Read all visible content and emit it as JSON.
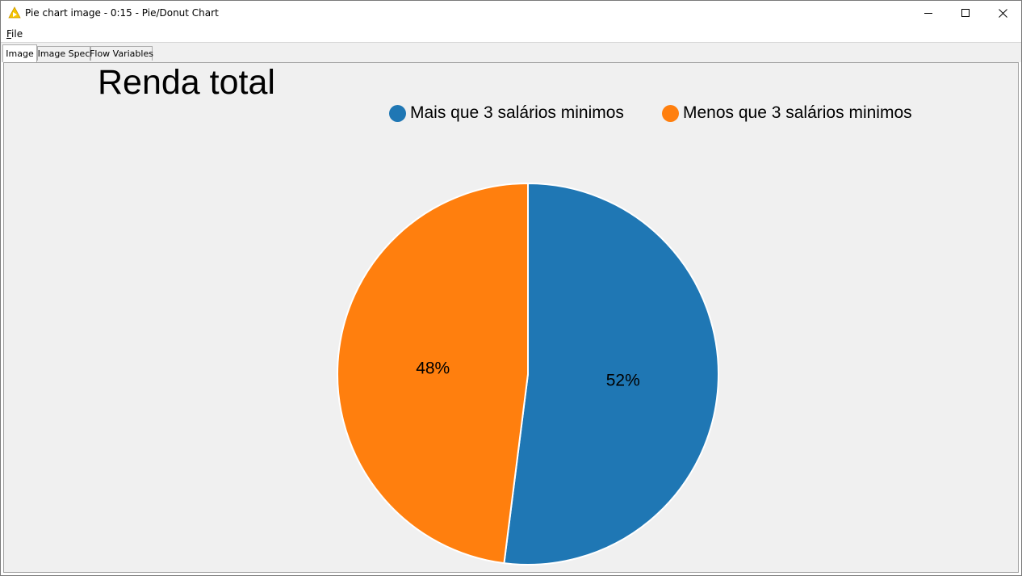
{
  "window": {
    "title": "Pie chart image - 0:15 - Pie/Donut Chart",
    "icon": "knime-triangle-icon",
    "controls": [
      "minimize-icon",
      "maximize-icon",
      "close-icon"
    ]
  },
  "menu": {
    "file_label": "File",
    "file_mnemonic": "F",
    "file_rest": "ile"
  },
  "tabs": [
    {
      "label": "Image",
      "active": true
    },
    {
      "label": "Image Spec",
      "active": false
    },
    {
      "label": "Flow Variables",
      "active": false
    }
  ],
  "chart_data": {
    "type": "pie",
    "title": "Renda total",
    "legend_position": "top-right",
    "slices": [
      {
        "label": "Mais que 3 salários minimos",
        "value": 52,
        "display": "52%",
        "color": "#1f77b4"
      },
      {
        "label": "Menos que 3 salários minimos",
        "value": 48,
        "display": "48%",
        "color": "#ff7f0e"
      }
    ]
  }
}
